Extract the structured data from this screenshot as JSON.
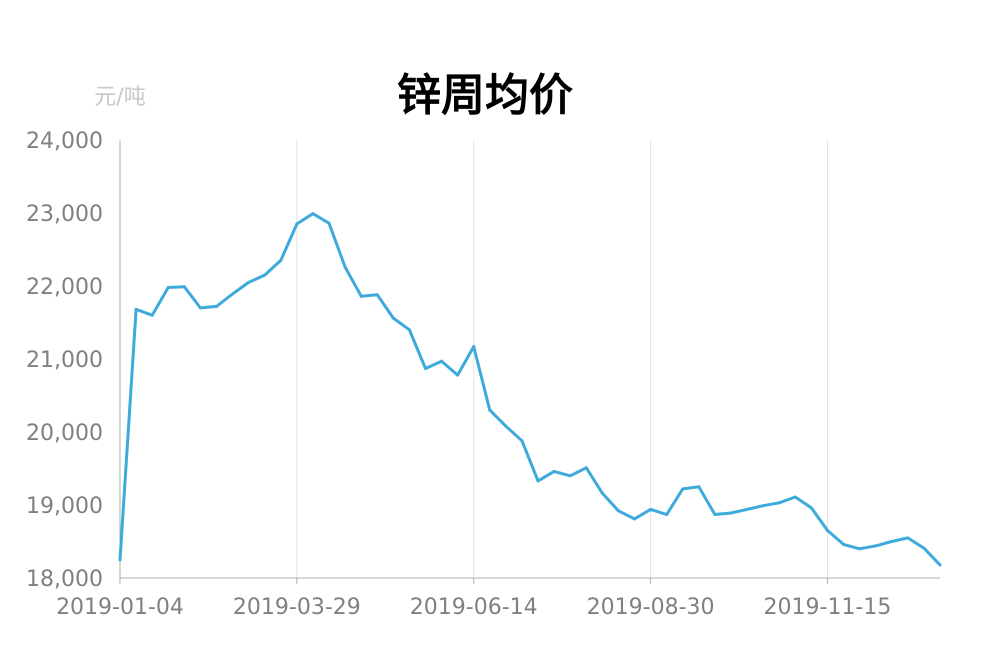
{
  "chart_data": {
    "type": "line",
    "title": "锌周均价",
    "unit_label": "元/吨",
    "xlabel": "",
    "ylabel": "",
    "ylim": [
      18000,
      24000
    ],
    "y_ticks": [
      "18,000",
      "19,000",
      "20,000",
      "21,000",
      "22,000",
      "23,000",
      "24,000"
    ],
    "x_tick_labels": [
      "2019-01-04",
      "2019-03-29",
      "2019-06-14",
      "2019-08-30",
      "2019-11-15"
    ],
    "x_tick_indices": [
      0,
      11,
      22,
      33,
      44
    ],
    "grid": "vertical",
    "line_color": "#3eaadc",
    "values": [
      18250,
      21680,
      21600,
      21980,
      21990,
      21700,
      21720,
      21890,
      22050,
      22150,
      22350,
      22850,
      22990,
      22860,
      22260,
      21860,
      21880,
      21560,
      21400,
      20870,
      20970,
      20780,
      21170,
      20300,
      20080,
      19880,
      19330,
      19460,
      19400,
      19510,
      19160,
      18920,
      18810,
      18940,
      18870,
      19220,
      19250,
      18870,
      18890,
      18940,
      18990,
      19030,
      19110,
      18960,
      18650,
      18460,
      18400,
      18440,
      18500,
      18550,
      18410,
      18180
    ]
  }
}
